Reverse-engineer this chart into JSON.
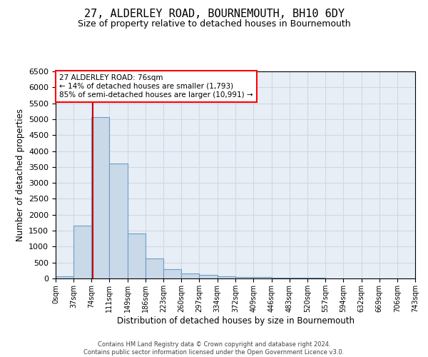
{
  "title": "27, ALDERLEY ROAD, BOURNEMOUTH, BH10 6DY",
  "subtitle": "Size of property relative to detached houses in Bournemouth",
  "xlabel": "Distribution of detached houses by size in Bournemouth",
  "ylabel": "Number of detached properties",
  "footer_line1": "Contains HM Land Registry data © Crown copyright and database right 2024.",
  "footer_line2": "Contains public sector information licensed under the Open Government Licence v3.0.",
  "annotation_line1": "27 ALDERLEY ROAD: 76sqm",
  "annotation_line2": "← 14% of detached houses are smaller (1,793)",
  "annotation_line3": "85% of semi-detached houses are larger (10,991) →",
  "bar_color": "#c9d9e8",
  "bar_edge_color": "#6b9ec8",
  "property_line_color": "#cc0000",
  "property_line_x": 76,
  "bin_edges": [
    0,
    37,
    74,
    111,
    149,
    186,
    223,
    260,
    297,
    334,
    372,
    409,
    446,
    483,
    520,
    557,
    594,
    632,
    669,
    706,
    743
  ],
  "bar_heights": [
    75,
    1650,
    5075,
    3600,
    1420,
    625,
    300,
    150,
    110,
    75,
    55,
    50,
    30,
    20,
    15,
    10,
    8,
    5,
    5,
    5
  ],
  "ylim": [
    0,
    6500
  ],
  "yticks": [
    0,
    500,
    1000,
    1500,
    2000,
    2500,
    3000,
    3500,
    4000,
    4500,
    5000,
    5500,
    6000,
    6500
  ],
  "grid_color": "#d0d8e8",
  "background_color": "#e8eef5",
  "title_fontsize": 11,
  "subtitle_fontsize": 9
}
